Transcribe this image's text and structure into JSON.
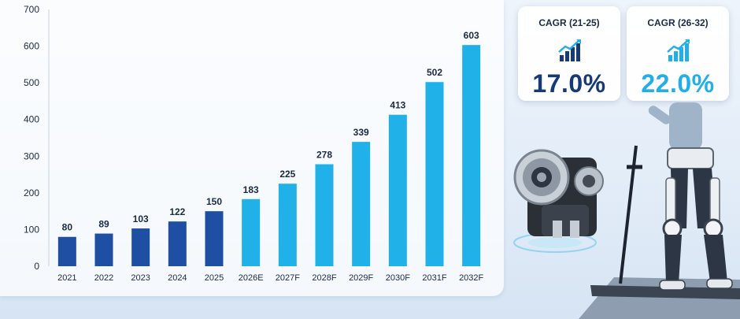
{
  "chart_data": {
    "type": "bar",
    "categories": [
      "2021",
      "2022",
      "2023",
      "2024",
      "2025",
      "2026E",
      "2027F",
      "2028F",
      "2029F",
      "2030F",
      "2031F",
      "2032F"
    ],
    "values": [
      80,
      89,
      103,
      122,
      150,
      183,
      225,
      278,
      339,
      413,
      502,
      603
    ],
    "ylim": [
      0,
      700
    ],
    "yticks": [
      0,
      100,
      200,
      300,
      400,
      500,
      600,
      700
    ],
    "grid": false,
    "colors": {
      "historical": "#1f4fa3",
      "forecast": "#1fb1e8"
    },
    "historical_count": 5
  },
  "cards": [
    {
      "label": "CAGR (21-25)",
      "value": "17.0%",
      "color": "#163a78",
      "icon": "growth-chart-icon"
    },
    {
      "label": "CAGR (26-32)",
      "value": "22.0%",
      "color": "#22aee6",
      "icon": "growth-chart-icon"
    }
  ],
  "illustration": {
    "icons": [
      "robotic-actuator-icon",
      "exoskeleton-user-icon"
    ]
  }
}
